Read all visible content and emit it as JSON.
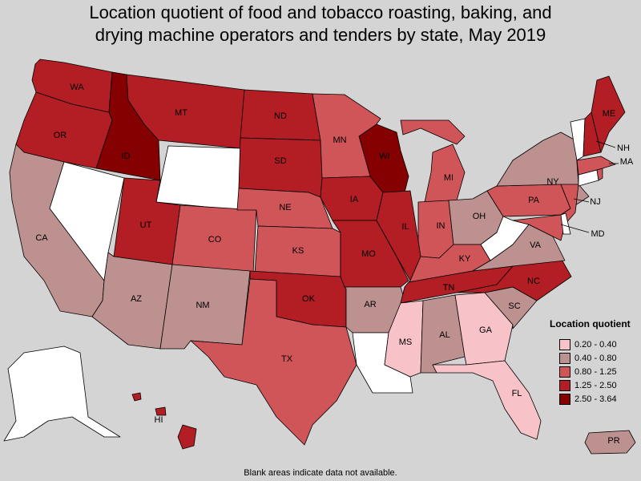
{
  "title": {
    "line1": "Location quotient of food and tobacco roasting, baking, and",
    "line2": "drying machine operators and tenders by state, May 2019"
  },
  "legend": {
    "title": "Location quotient",
    "items": [
      {
        "label": "0.20 - 0.40",
        "color": "#f7c3c8"
      },
      {
        "label": "0.40 - 0.80",
        "color": "#bd9190"
      },
      {
        "label": "0.80 - 1.25",
        "color": "#d05559"
      },
      {
        "label": "1.25 - 2.50",
        "color": "#b21e23"
      },
      {
        "label": "2.50 - 3.64",
        "color": "#850000"
      }
    ]
  },
  "no_data_color": "#ffffff",
  "footnote": "Blank areas indicate data not available.",
  "states": [
    {
      "abbr": "WA",
      "bin": "1.25 - 2.50"
    },
    {
      "abbr": "OR",
      "bin": "1.25 - 2.50"
    },
    {
      "abbr": "CA",
      "bin": "0.40 - 0.80"
    },
    {
      "abbr": "NV",
      "bin": "no data"
    },
    {
      "abbr": "ID",
      "bin": "2.50 - 3.64"
    },
    {
      "abbr": "MT",
      "bin": "1.25 - 2.50"
    },
    {
      "abbr": "WY",
      "bin": "no data"
    },
    {
      "abbr": "UT",
      "bin": "1.25 - 2.50"
    },
    {
      "abbr": "AZ",
      "bin": "0.40 - 0.80"
    },
    {
      "abbr": "CO",
      "bin": "0.80 - 1.25"
    },
    {
      "abbr": "NM",
      "bin": "0.40 - 0.80"
    },
    {
      "abbr": "ND",
      "bin": "1.25 - 2.50"
    },
    {
      "abbr": "SD",
      "bin": "1.25 - 2.50"
    },
    {
      "abbr": "NE",
      "bin": "0.80 - 1.25"
    },
    {
      "abbr": "KS",
      "bin": "0.80 - 1.25"
    },
    {
      "abbr": "OK",
      "bin": "1.25 - 2.50"
    },
    {
      "abbr": "TX",
      "bin": "0.80 - 1.25"
    },
    {
      "abbr": "MN",
      "bin": "0.80 - 1.25"
    },
    {
      "abbr": "IA",
      "bin": "1.25 - 2.50"
    },
    {
      "abbr": "MO",
      "bin": "1.25 - 2.50"
    },
    {
      "abbr": "AR",
      "bin": "0.40 - 0.80"
    },
    {
      "abbr": "LA",
      "bin": "no data"
    },
    {
      "abbr": "WI",
      "bin": "2.50 - 3.64"
    },
    {
      "abbr": "IL",
      "bin": "1.25 - 2.50"
    },
    {
      "abbr": "MI",
      "bin": "0.80 - 1.25"
    },
    {
      "abbr": "IN",
      "bin": "0.80 - 1.25"
    },
    {
      "abbr": "OH",
      "bin": "0.40 - 0.80"
    },
    {
      "abbr": "KY",
      "bin": "0.80 - 1.25"
    },
    {
      "abbr": "TN",
      "bin": "1.25 - 2.50"
    },
    {
      "abbr": "MS",
      "bin": "0.20 - 0.40"
    },
    {
      "abbr": "AL",
      "bin": "0.40 - 0.80"
    },
    {
      "abbr": "GA",
      "bin": "0.20 - 0.40"
    },
    {
      "abbr": "FL",
      "bin": "0.20 - 0.40"
    },
    {
      "abbr": "SC",
      "bin": "0.40 - 0.80"
    },
    {
      "abbr": "NC",
      "bin": "1.25 - 2.50"
    },
    {
      "abbr": "VA",
      "bin": "0.40 - 0.80"
    },
    {
      "abbr": "WV",
      "bin": "no data"
    },
    {
      "abbr": "PA",
      "bin": "0.80 - 1.25"
    },
    {
      "abbr": "NY",
      "bin": "0.40 - 0.80"
    },
    {
      "abbr": "NJ",
      "bin": "0.80 - 1.25"
    },
    {
      "abbr": "MD",
      "bin": "0.80 - 1.25"
    },
    {
      "abbr": "DE",
      "bin": "no data"
    },
    {
      "abbr": "CT",
      "bin": "no data"
    },
    {
      "abbr": "RI",
      "bin": "0.80 - 1.25"
    },
    {
      "abbr": "MA",
      "bin": "0.80 - 1.25"
    },
    {
      "abbr": "VT",
      "bin": "no data"
    },
    {
      "abbr": "NH",
      "bin": "1.25 - 2.50"
    },
    {
      "abbr": "ME",
      "bin": "1.25 - 2.50"
    },
    {
      "abbr": "AK",
      "bin": "no data"
    },
    {
      "abbr": "HI",
      "bin": "1.25 - 2.50"
    },
    {
      "abbr": "PR",
      "bin": "0.40 - 0.80"
    }
  ]
}
